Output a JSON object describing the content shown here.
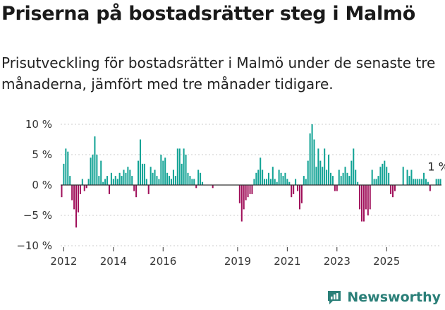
{
  "title": "Priserna på bostadsrätter steg i Malmö",
  "subtitle": "Prisutveckling för bostadsrätter i Malmö under de senaste tre månaderna, jämfört med tre månader tidigare.",
  "brand": {
    "name": "Newsworthy",
    "icon": "newsworthy-logo-icon"
  },
  "colors": {
    "positive": "#12a395",
    "negative": "#a0105a",
    "axis": "#333333",
    "grid": "#cccccc"
  },
  "chart_data": {
    "type": "bar",
    "x_start": "2011-12",
    "x_step": "month",
    "ylim": [
      -10,
      10
    ],
    "y_ticks": [
      {
        "value": 10,
        "label": "10 %"
      },
      {
        "value": 5,
        "label": "5 %"
      },
      {
        "value": 0,
        "label": "0 %"
      },
      {
        "value": -5,
        "label": "−5 %"
      },
      {
        "value": -10,
        "label": "−10 %"
      }
    ],
    "x_ticks": [
      {
        "month": "2012-01",
        "label": "2012"
      },
      {
        "month": "2014-01",
        "label": "2014"
      },
      {
        "month": "2016-01",
        "label": "2016"
      },
      {
        "month": "2019-01",
        "label": "2019"
      },
      {
        "month": "2021-01",
        "label": "2021"
      },
      {
        "month": "2023-01",
        "label": "2023"
      },
      {
        "month": "2025-01",
        "label": "2025"
      }
    ],
    "values": [
      -2,
      3.5,
      6,
      5.5,
      1.5,
      -2.5,
      -4,
      -7,
      -4.5,
      -1.5,
      1,
      -1,
      -0.5,
      1,
      4.5,
      5,
      8,
      5,
      1.5,
      4,
      0.5,
      1,
      1.5,
      -1.5,
      2,
      1,
      1.5,
      1,
      2,
      1.5,
      2.5,
      2,
      3,
      2.5,
      1.5,
      -1,
      -2,
      4,
      7.5,
      3.5,
      3.5,
      1,
      -1.5,
      3,
      2,
      2.5,
      1.5,
      1,
      5,
      4,
      4.5,
      2,
      1.5,
      1,
      2.5,
      1.5,
      6,
      6,
      3.5,
      6,
      5,
      2,
      1.5,
      1,
      1,
      -0.5,
      2.5,
      2,
      0.5,
      0,
      0,
      0,
      0,
      -0.5,
      0,
      0,
      0,
      0,
      0,
      0,
      0,
      0,
      0,
      0,
      0,
      0,
      -3,
      -6,
      -4,
      -2.5,
      -2,
      -1.5,
      -1.5,
      1,
      2,
      2.5,
      4.5,
      2.5,
      1,
      1,
      2,
      1,
      3,
      1,
      0.5,
      2.5,
      2,
      1.5,
      2,
      1,
      0.5,
      -2,
      -1.5,
      1,
      -1,
      -4,
      -3,
      1.5,
      1,
      4,
      8.5,
      10,
      7.5,
      3,
      6,
      4,
      3,
      6,
      2.5,
      5,
      2,
      1.5,
      -1,
      -1,
      2.5,
      1.5,
      2,
      3,
      2,
      1.5,
      4,
      6,
      2.5,
      0.5,
      -4,
      -6,
      -6,
      -4,
      -5,
      -4,
      2.5,
      1,
      1,
      1.5,
      3,
      3.5,
      4,
      3,
      2,
      -1.5,
      -2,
      -1,
      0,
      0,
      0,
      3,
      0,
      2.5,
      1.5,
      2.5,
      1,
      1,
      1,
      1,
      1,
      2,
      1,
      0.5,
      -1,
      0,
      0,
      1,
      1,
      1
    ],
    "last_value_label": "1 %"
  }
}
